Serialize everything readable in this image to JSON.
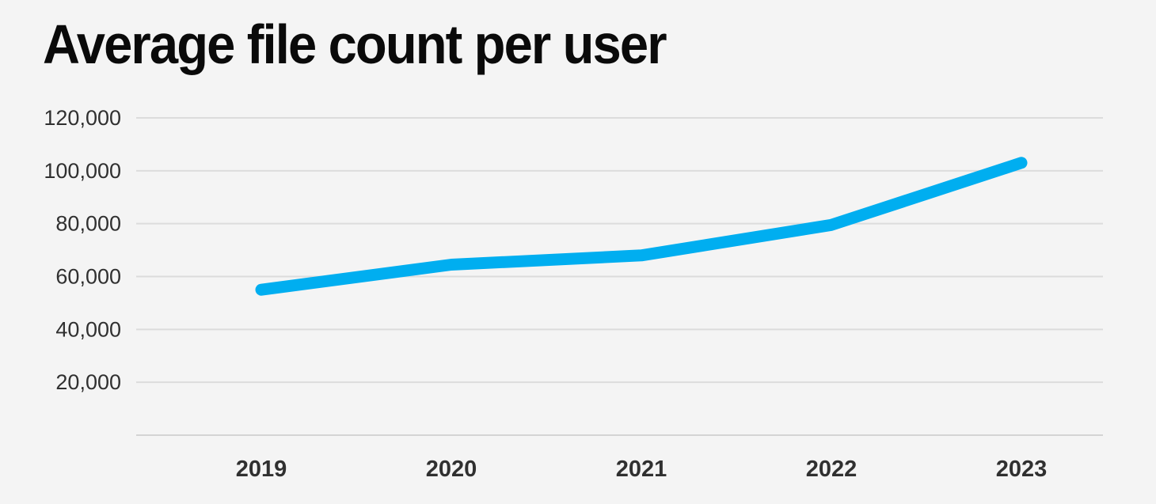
{
  "page": {
    "background_color": "#f4f4f4"
  },
  "title": "Average file count per user",
  "chart_data": {
    "type": "line",
    "title": "Average file count per user",
    "xlabel": "",
    "ylabel": "",
    "categories": [
      "2019",
      "2020",
      "2021",
      "2022",
      "2023"
    ],
    "series": [
      {
        "name": "Average file count per user",
        "values": [
          55000,
          64500,
          68000,
          79500,
          103000
        ]
      }
    ],
    "ylim": [
      0,
      120000
    ],
    "ytick_interval": 20000,
    "ytick_values": [
      20000,
      40000,
      60000,
      80000,
      100000,
      120000
    ],
    "ytick_labels": [
      "20,000",
      "40,000",
      "60,000",
      "80,000",
      "100,000",
      "120,000"
    ],
    "grid": true,
    "legend_position": "none",
    "line_color": "#00aef0",
    "line_width": 15,
    "gridline_color": "#dcdcdc",
    "baseline_color": "#d4d4d4",
    "tick_label_color": "#303030",
    "title_color": "#0a0a0a"
  }
}
